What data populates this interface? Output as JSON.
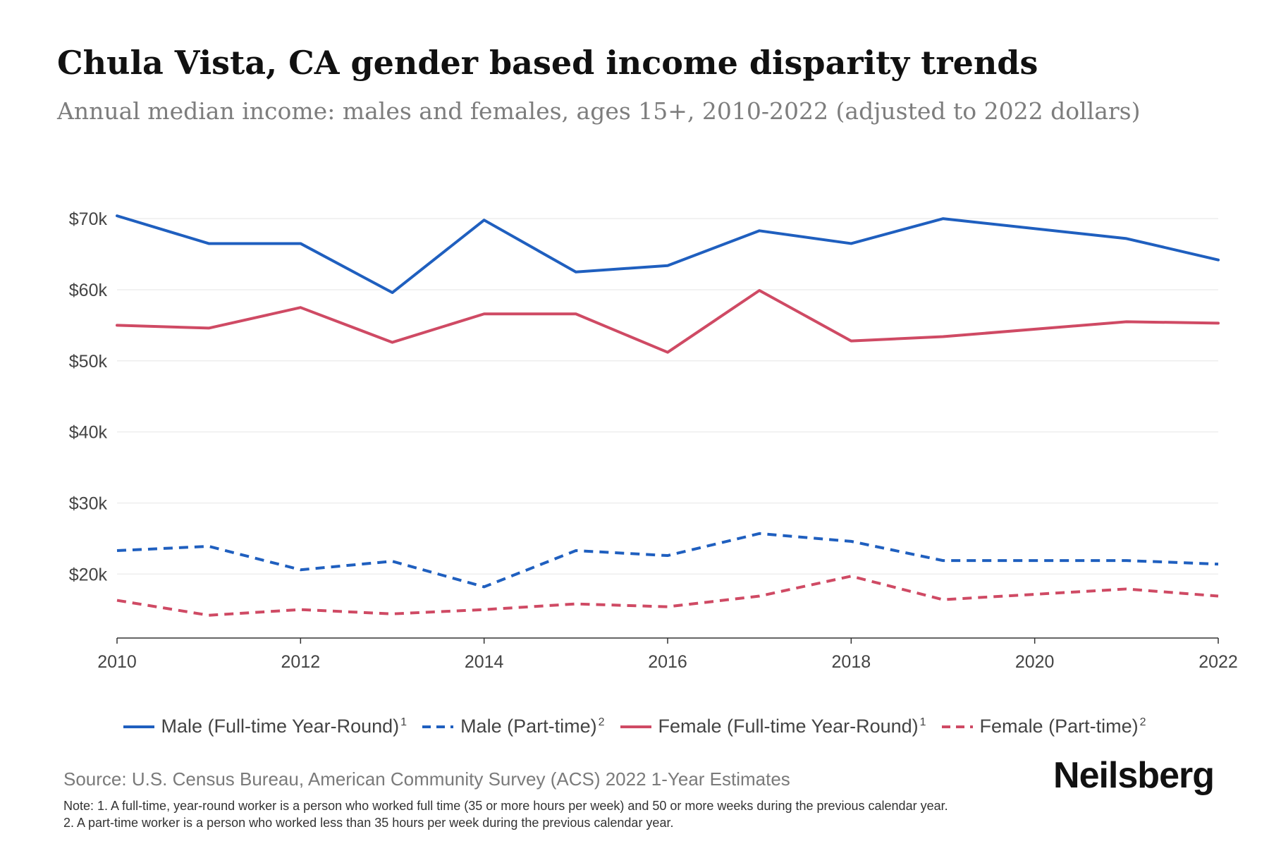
{
  "header": {
    "title": "Chula Vista, CA gender based income disparity trends",
    "subtitle": "Annual median income: males and females, ages 15+, 2010-2022 (adjusted to 2022 dollars)"
  },
  "chart_data": {
    "type": "line",
    "x": [
      2010,
      2011,
      2012,
      2013,
      2014,
      2015,
      2016,
      2017,
      2018,
      2019,
      2020,
      2021,
      2022
    ],
    "x_ticks": [
      2010,
      2012,
      2014,
      2016,
      2018,
      2020,
      2022
    ],
    "x_tick_labels": [
      "2010",
      "2012",
      "2014",
      "2016",
      "2018",
      "2020",
      "2022"
    ],
    "y_ticks": [
      20000,
      30000,
      40000,
      50000,
      60000,
      70000
    ],
    "y_tick_labels": [
      "$20k",
      "$30k",
      "$40k",
      "$50k",
      "$60k",
      "$70k"
    ],
    "ylim": [
      11000,
      72000
    ],
    "xlim": [
      2010,
      2022
    ],
    "grid": true,
    "series": [
      {
        "name": "Male (Full-time Year-Round)",
        "sup": "1",
        "color": "#1f5fbf",
        "dashed": false,
        "values": [
          70400,
          66500,
          66500,
          59600,
          69800,
          62500,
          63400,
          68300,
          66500,
          70000,
          null,
          67200,
          64200
        ]
      },
      {
        "name": "Male (Part-time)",
        "sup": "2",
        "color": "#1f5fbf",
        "dashed": true,
        "values": [
          23300,
          23900,
          20600,
          21800,
          18200,
          23300,
          22600,
          25700,
          24600,
          21900,
          null,
          21900,
          21400
        ]
      },
      {
        "name": "Female (Full-time Year-Round)",
        "sup": "1",
        "color": "#cf4a64",
        "dashed": false,
        "values": [
          55000,
          54600,
          57500,
          52600,
          56600,
          56600,
          51200,
          59900,
          52800,
          53400,
          null,
          55500,
          55300
        ]
      },
      {
        "name": "Female (Part-time)",
        "sup": "2",
        "color": "#cf4a64",
        "dashed": true,
        "values": [
          16300,
          14200,
          15000,
          14400,
          15000,
          15800,
          15400,
          16900,
          19700,
          16400,
          null,
          17900,
          16900
        ]
      }
    ]
  },
  "footer": {
    "source": "Source: U.S. Census Bureau, American Community Survey (ACS) 2022 1-Year Estimates",
    "brand": "Neilsberg",
    "note1": "Note: 1. A full-time, year-round worker is a person who worked full time (35 or more hours per week) and 50 or more weeks during the previous calendar year.",
    "note2": "2. A part-time worker is a person who worked less than 35 hours per week during the previous calendar year."
  }
}
